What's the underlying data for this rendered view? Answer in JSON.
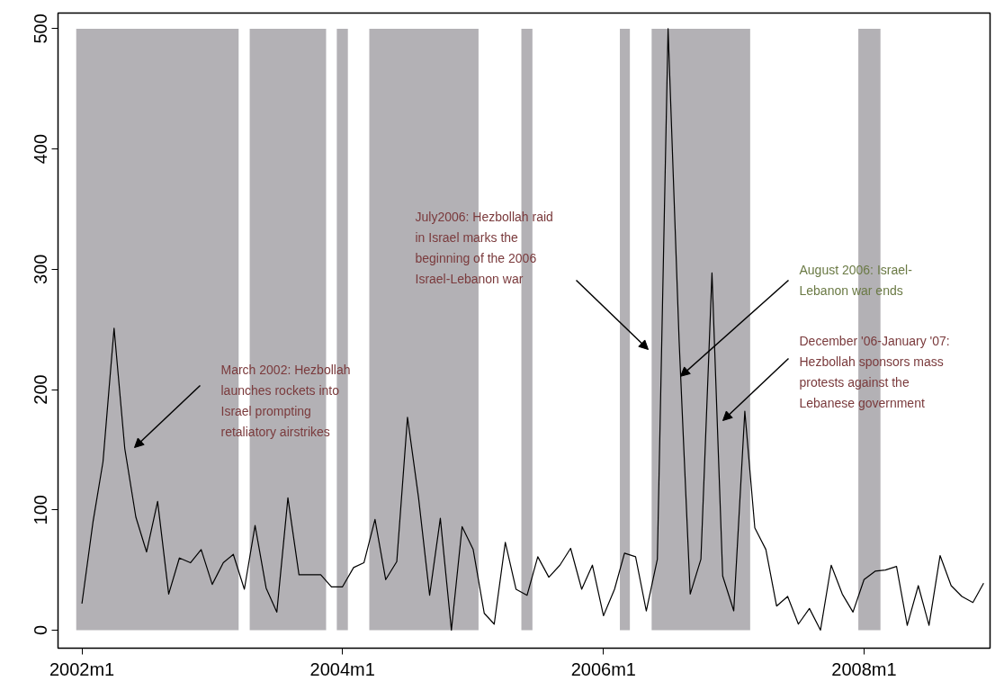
{
  "chart_data": {
    "type": "line",
    "x": [
      "2002-01",
      "2002-02",
      "2002-03",
      "2002-04",
      "2002-05",
      "2002-06",
      "2002-07",
      "2002-08",
      "2002-09",
      "2002-10",
      "2002-11",
      "2002-12",
      "2003-01",
      "2003-02",
      "2003-03",
      "2003-04",
      "2003-05",
      "2003-06",
      "2003-07",
      "2003-08",
      "2003-09",
      "2003-10",
      "2003-11",
      "2003-12",
      "2004-01",
      "2004-02",
      "2004-03",
      "2004-04",
      "2004-05",
      "2004-06",
      "2004-07",
      "2004-08",
      "2004-09",
      "2004-10",
      "2004-11",
      "2004-12",
      "2005-01",
      "2005-02",
      "2005-03",
      "2005-04",
      "2005-05",
      "2005-06",
      "2005-07",
      "2005-08",
      "2005-09",
      "2005-10",
      "2005-11",
      "2005-12",
      "2006-01",
      "2006-02",
      "2006-03",
      "2006-04",
      "2006-05",
      "2006-06",
      "2006-07",
      "2006-08",
      "2006-09",
      "2006-10",
      "2006-11",
      "2006-12",
      "2007-01",
      "2007-02",
      "2007-03",
      "2007-04",
      "2007-05",
      "2007-06",
      "2007-07",
      "2007-08",
      "2007-09",
      "2007-10",
      "2007-11",
      "2007-12",
      "2008-01",
      "2008-02",
      "2008-03",
      "2008-04",
      "2008-05",
      "2008-06",
      "2008-07",
      "2008-08",
      "2008-09",
      "2008-10",
      "2008-11",
      "2008-12"
    ],
    "series": [
      {
        "color": "#000000",
        "values": [
          22,
          90,
          140,
          251,
          151,
          94,
          65,
          107,
          30,
          60,
          56,
          67,
          38,
          56,
          63,
          34,
          87,
          35,
          15,
          110,
          46,
          46,
          46,
          36,
          36,
          52,
          56,
          92,
          42,
          57,
          177,
          110,
          29,
          93,
          0,
          86,
          67,
          14,
          5,
          73,
          34,
          29,
          61,
          44,
          54,
          68,
          34,
          54,
          12,
          34,
          64,
          61,
          16,
          59,
          500,
          240,
          30,
          59,
          297,
          45,
          16,
          182,
          85,
          67,
          20,
          28,
          5,
          18,
          0,
          54,
          30,
          15,
          42,
          49,
          50,
          53,
          4,
          37,
          4,
          62,
          37,
          28,
          23,
          39
        ]
      }
    ],
    "xlim": [
      "2001-10-26",
      "2008-12-19"
    ],
    "ylim": [
      -15,
      513
    ],
    "xticks": [
      {
        "value": "2002-01",
        "label": "2002m1"
      },
      {
        "value": "2004-01",
        "label": "2004m1"
      },
      {
        "value": "2006-01",
        "label": "2006m1"
      },
      {
        "value": "2008-01",
        "label": "2008m1"
      }
    ],
    "yticks": [
      0,
      100,
      200,
      300,
      400,
      500
    ],
    "bands": [
      {
        "axis": "x",
        "from": "2001-12-16",
        "to": "2003-03-16",
        "color": "#b3b1b5"
      },
      {
        "axis": "x",
        "from": "2003-04-16",
        "to": "2003-11-16",
        "color": "#b3b1b5"
      },
      {
        "axis": "x",
        "from": "2003-12-16",
        "to": "2004-01-16",
        "color": "#b3b1b5"
      },
      {
        "axis": "x",
        "from": "2004-03-16",
        "to": "2005-01-16",
        "color": "#b3b1b5"
      },
      {
        "axis": "x",
        "from": "2005-05-16",
        "to": "2005-06-16",
        "color": "#b3b1b5"
      },
      {
        "axis": "x",
        "from": "2006-02-16",
        "to": "2006-03-16",
        "color": "#b3b1b5"
      },
      {
        "axis": "x",
        "from": "2006-05-16",
        "to": "2007-02-16",
        "color": "#b3b1b5"
      },
      {
        "axis": "x",
        "from": "2007-12-16",
        "to": "2008-02-16",
        "color": "#b3b1b5"
      }
    ],
    "annotations": [
      "March 2002:  Hezbollah\nlaunches rockets into\nIsrael prompting\nretaliatory airstrikes",
      "July2006:  Hezbollah raid\nin Israel marks the\nbeginning of the 2006\nIsrael-Lebanon war",
      {
        "text": "August 2006: Israel-\nLebanon war ends",
        "x": "2006-08-05",
        "y": 211
      },
      "December '06-January '07:\nHezbollah sponsors mass\nprotests against the\nLebanese government"
    ],
    "grid": false,
    "marker": "none",
    "line_style": "solid"
  }
}
